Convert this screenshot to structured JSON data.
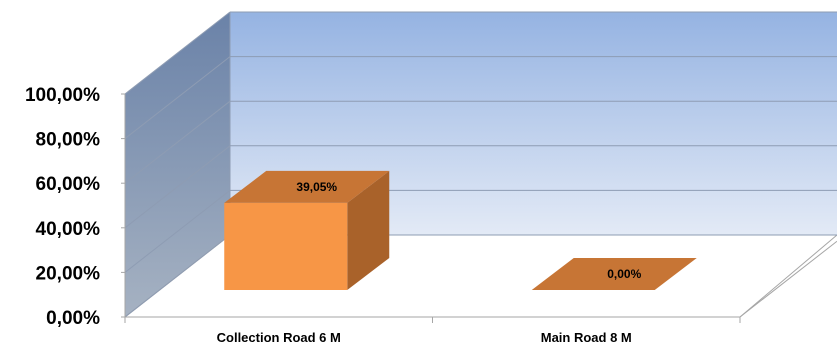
{
  "chart_data": {
    "type": "bar",
    "subtype": "3d-clustered-column",
    "categories": [
      "Collection Road 6 M",
      "Main Road 8 M"
    ],
    "values": [
      39.05,
      0.0
    ],
    "data_labels": [
      "39,05%",
      "0,00%"
    ],
    "y_ticks": [
      "0,00%",
      "20,00%",
      "40,00%",
      "60,00%",
      "80,00%",
      "100,00%"
    ],
    "ylim": [
      0,
      100
    ],
    "grid": true,
    "legend": "none",
    "colors": {
      "bar_front": "#F79646",
      "bar_top": "#C77535",
      "bar_side": "#A9622A",
      "back_wall_top": "#95B3E2",
      "back_wall_bottom": "#E3EAF6",
      "side_wall_top": "#6A82A8",
      "side_wall_bottom": "#A6B2C2",
      "gridline": "#8E9CB3",
      "axis": "#A6A6A6"
    }
  }
}
